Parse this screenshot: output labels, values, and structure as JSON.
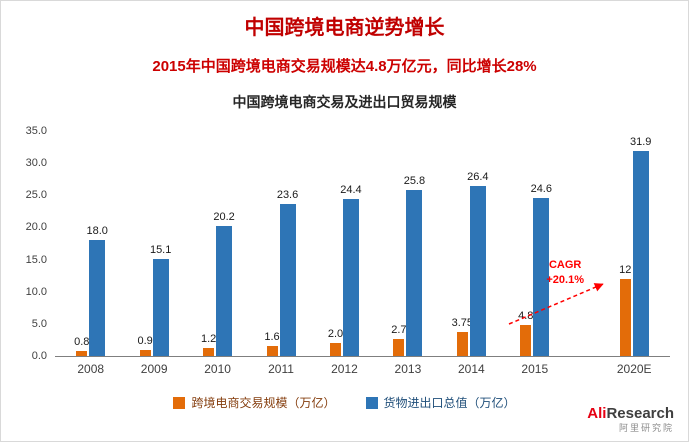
{
  "header": {
    "title": "中国跨境电商逆势增长",
    "subtitle": "2015年中国跨境电商交易规模达4.8万亿元，同比增长28%"
  },
  "chart_data": {
    "type": "bar",
    "title": "中国跨境电商交易及进出口贸易规模",
    "categories": [
      "2008",
      "2009",
      "2010",
      "2011",
      "2012",
      "2013",
      "2014",
      "2015",
      "2020E"
    ],
    "series": [
      {
        "name": "跨境电商交易规模（万亿）",
        "color": "#e36c09",
        "legend_text_color": "#843c0c",
        "values": [
          0.8,
          0.9,
          1.2,
          1.6,
          2.0,
          2.7,
          3.75,
          4.8,
          12
        ]
      },
      {
        "name": "货物进出口总值（万亿）",
        "color": "#2e75b6",
        "legend_text_color": "#1f4e79",
        "values": [
          18.0,
          15.1,
          20.2,
          23.6,
          24.4,
          25.8,
          26.4,
          24.6,
          31.9
        ]
      }
    ],
    "value_labels": [
      [
        "0.8",
        "0.9",
        "1.2",
        "1.6",
        "2.0",
        "2.7",
        "3.75",
        "4.8",
        "12"
      ],
      [
        "18.0",
        "15.1",
        "20.2",
        "23.6",
        "24.4",
        "25.8",
        "26.4",
        "24.6",
        "31.9"
      ]
    ],
    "ylim": [
      0,
      35
    ],
    "yticks": [
      "35.0",
      "30.0",
      "25.0",
      "20.0",
      "15.0",
      "10.0",
      "5.0",
      "0.0"
    ],
    "grid": false,
    "legend_position": "bottom",
    "annotation": {
      "line1": "CAGR",
      "line2": "+20.1%",
      "color": "#ff0000"
    }
  },
  "logo": {
    "ali": "Ali",
    "research": "Research",
    "cn": "阿里研究院"
  }
}
